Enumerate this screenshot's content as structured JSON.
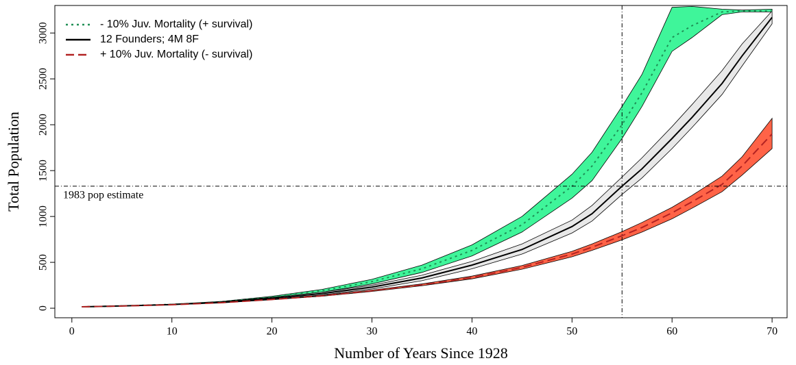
{
  "chart_data": {
    "type": "line",
    "x_label": "Number of Years Since 1928",
    "y_label": "Total Population",
    "x": [
      1,
      5,
      10,
      15,
      20,
      25,
      30,
      35,
      40,
      45,
      50,
      52,
      55,
      57,
      60,
      62,
      65,
      67,
      70
    ],
    "series": [
      {
        "name": "- 10% Juv. Mortality (+ survival)",
        "color": "#1f8f55",
        "fill": "#3ff59a",
        "dash": "dotted",
        "values": [
          15,
          25,
          42,
          70,
          120,
          190,
          290,
          430,
          630,
          910,
          1330,
          1550,
          2000,
          2350,
          2950,
          3080,
          3230,
          3240,
          3240
        ],
        "lower": [
          15,
          24,
          40,
          66,
          112,
          175,
          265,
          390,
          570,
          830,
          1200,
          1390,
          1850,
          2200,
          2800,
          2950,
          3200,
          3230,
          3230
        ],
        "upper": [
          16,
          26,
          44,
          75,
          130,
          205,
          315,
          470,
          690,
          1000,
          1460,
          1700,
          2200,
          2550,
          3280,
          3290,
          3260,
          3250,
          3260
        ]
      },
      {
        "name": "12 Founders; 4M 8F",
        "color": "#000000",
        "fill": "#e8e8e8",
        "dash": "solid",
        "values": [
          15,
          25,
          40,
          65,
          110,
          160,
          230,
          330,
          470,
          640,
          890,
          1030,
          1330,
          1520,
          1850,
          2080,
          2450,
          2750,
          3170
        ],
        "lower": [
          15,
          24,
          38,
          60,
          100,
          145,
          210,
          300,
          430,
          590,
          820,
          950,
          1240,
          1420,
          1740,
          1970,
          2330,
          2640,
          3100
        ],
        "upper": [
          16,
          26,
          42,
          70,
          120,
          175,
          250,
          360,
          510,
          700,
          960,
          1120,
          1430,
          1640,
          1980,
          2220,
          2590,
          2880,
          3240
        ]
      },
      {
        "name": "+ 10% Juv. Mortality (- survival)",
        "color": "#b22222",
        "fill": "#ff6347",
        "dash": "dashed",
        "values": [
          15,
          24,
          38,
          60,
          95,
          135,
          190,
          255,
          335,
          445,
          590,
          665,
          790,
          880,
          1040,
          1160,
          1350,
          1550,
          1900
        ],
        "lower": [
          15,
          23,
          37,
          58,
          92,
          130,
          183,
          245,
          320,
          425,
          560,
          630,
          745,
          830,
          975,
          1090,
          1270,
          1450,
          1740
        ],
        "upper": [
          16,
          25,
          39,
          62,
          98,
          140,
          197,
          265,
          350,
          465,
          620,
          700,
          835,
          935,
          1100,
          1230,
          1440,
          1650,
          2070
        ]
      }
    ],
    "vline": 55,
    "hline": 1330,
    "hline_label": "1983 pop estimate",
    "xlim": [
      -1.7,
      71.5
    ],
    "ylim": [
      -104,
      3300
    ],
    "xticks": [
      0,
      10,
      20,
      30,
      40,
      50,
      60,
      70
    ],
    "yticks": [
      0,
      500,
      1000,
      1500,
      2000,
      2500,
      3000
    ],
    "legend": "top-left"
  }
}
